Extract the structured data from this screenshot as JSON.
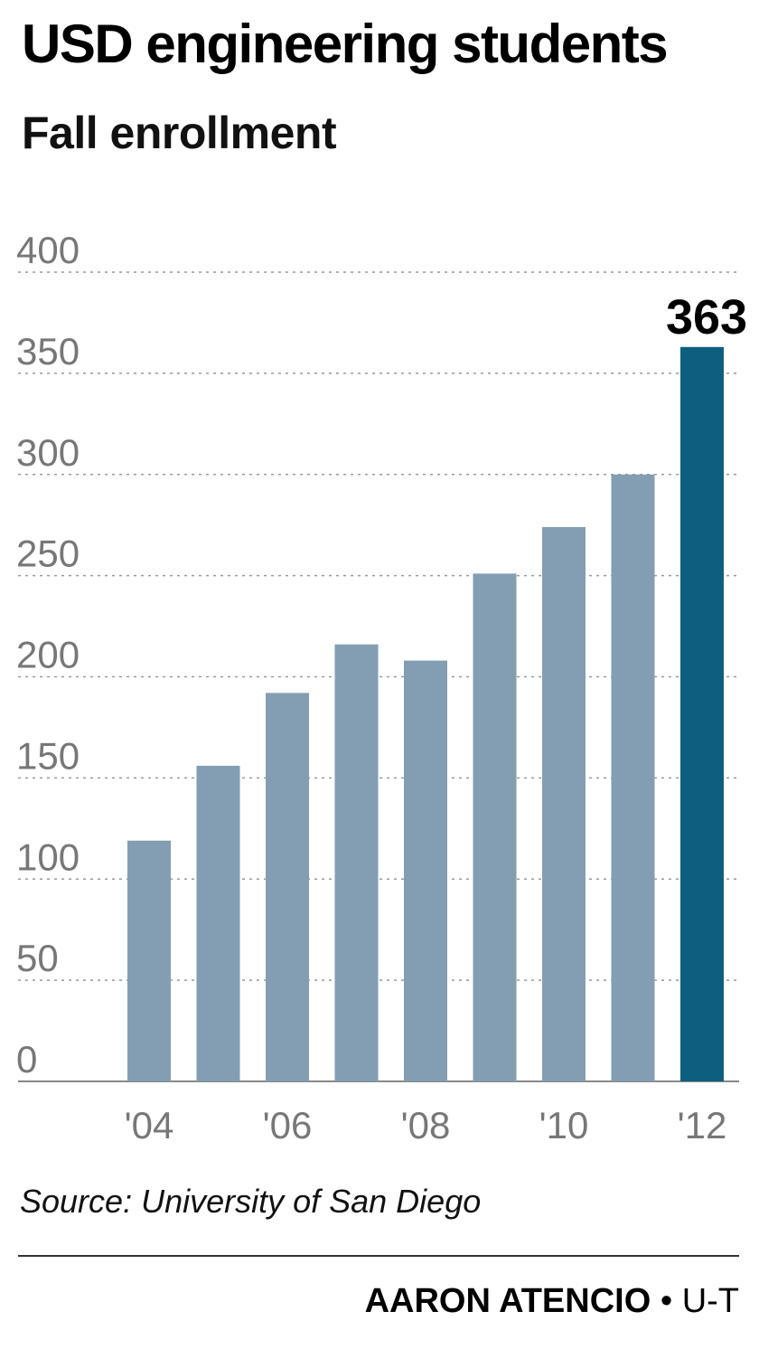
{
  "title": "USD engineering students",
  "subtitle": "Fall enrollment",
  "source": "Source: University of San Diego",
  "credit": {
    "author": "AARON ATENCIO",
    "separator": " • ",
    "outlet": "U-T"
  },
  "colors": {
    "bar": "#839eb2",
    "highlight": "#0e5f7f",
    "grid": "#9a9a9a",
    "axis_text": "#777777"
  },
  "chart_data": {
    "type": "bar",
    "title": "USD engineering students",
    "subtitle": "Fall enrollment",
    "x": [
      "2004",
      "2005",
      "2006",
      "2007",
      "2008",
      "2009",
      "2010",
      "2011",
      "2012"
    ],
    "values": [
      119,
      156,
      192,
      216,
      208,
      251,
      274,
      300,
      363
    ],
    "x_tick_labels": [
      "'04",
      "",
      "'06",
      "",
      "'08",
      "",
      "'10",
      "",
      "'12"
    ],
    "y_ticks": [
      0,
      50,
      100,
      150,
      200,
      250,
      300,
      350,
      400
    ],
    "ylim": [
      0,
      400
    ],
    "grid": true,
    "highlight_index": 8,
    "data_labels": [
      {
        "index": 8,
        "text": "363"
      }
    ]
  }
}
